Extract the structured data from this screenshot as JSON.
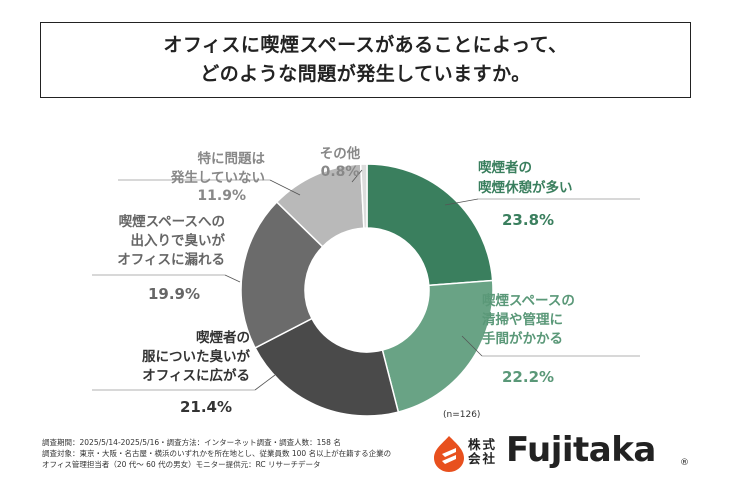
{
  "title": {
    "line1": "オフィスに喫煙スペースがあることによって、",
    "line2": "どのような問題が発生していますか。"
  },
  "chart_data": {
    "type": "pie",
    "donut": true,
    "slices": [
      {
        "label_lines": [
          "喫煙者の",
          "喫煙休憩が多い"
        ],
        "value": 23.8,
        "value_label": "23.8%",
        "color": "#3a7f5e",
        "label_color": "#3a7f5e"
      },
      {
        "label_lines": [
          "喫煙スペースの",
          "清掃や管理に",
          "手間がかかる"
        ],
        "value": 22.2,
        "value_label": "22.2%",
        "color": "#69a385",
        "label_color": "#5a9878"
      },
      {
        "label_lines": [
          "喫煙者の",
          "服についた臭いが",
          "オフィスに広がる"
        ],
        "value": 21.4,
        "value_label": "21.4%",
        "color": "#4a4a4a",
        "label_color": "#333333"
      },
      {
        "label_lines": [
          "喫煙スペースへの",
          "出入りで臭いが",
          "オフィスに漏れる"
        ],
        "value": 19.9,
        "value_label": "19.9%",
        "color": "#6b6b6b",
        "label_color": "#666666"
      },
      {
        "label_lines": [
          "特に問題は",
          "発生していない"
        ],
        "value": 11.9,
        "value_label": "11.9%",
        "color": "#b9b9b9",
        "label_color": "#888888"
      },
      {
        "label_lines": [
          "その他"
        ],
        "value": 0.8,
        "value_label": "0.8%",
        "color": "#dcdcdc",
        "label_color": "#888888"
      }
    ],
    "sample_note": "(n=126)"
  },
  "footer": {
    "lines": [
      "調査期間：2025/5/14-2025/5/16・調査方法：インターネット調査・調査人数：158 名",
      "調査対象：東京・大阪・名古屋・横浜のいずれかを所在地とし、従業員数 100 名以上が在籍する企業の",
      "オフィス管理担当者（20 代〜 60 代の男女）モニター提供元：RC リサーチデータ"
    ]
  },
  "logo": {
    "kanji": "株式会社",
    "wordmark": "Fujitaka",
    "registered": "®",
    "icon": "fujitaka-flame-icon",
    "icon_color": "#e8501e"
  }
}
